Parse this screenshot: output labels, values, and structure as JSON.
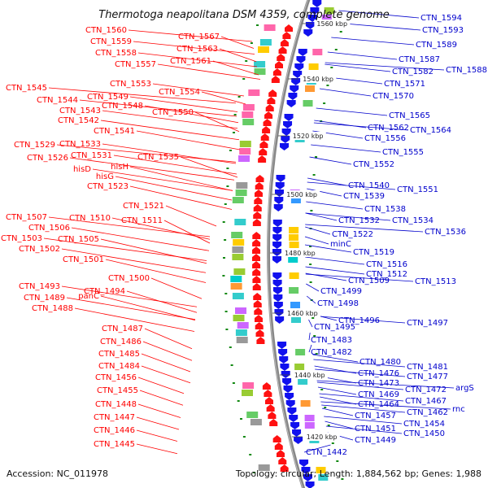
{
  "title": "Thermotoga neapolitana DSM 4359, complete genome",
  "accession": "Accession: NC_011978",
  "topology": "Topology: circular; Length: 1,884,562 bp; Genes: 1,988",
  "colors": {
    "left_labels": "#ff0000",
    "right_labels": "#0000cc",
    "backbone": "#888888",
    "tick": "#118811"
  },
  "kbp_markers": [
    "1560 kbp",
    "1540 kbp",
    "1520 kbp",
    "1500 kbp",
    "1480 kbp",
    "1460 kbp",
    "1440 kbp",
    "1420 kbp"
  ],
  "left_labels": [
    "CTN_1560",
    "CTN_1567",
    "CTN_1559",
    "CTN_1563",
    "CTN_1558",
    "CTN_1561",
    "CTN_1557",
    "CTN_1553",
    "CTN_1554",
    "CTN_1545",
    "CTN_1549",
    "CTN_1544",
    "CTN_1548",
    "CTN_1543",
    "CTN_1550",
    "CTN_1542",
    "CTN_1541",
    "CTN_1529",
    "CTN_1533",
    "CTN_1531",
    "CTN_1535",
    "CTN_1526",
    "hisD",
    "hisH",
    "hisG",
    "CTN_1523",
    "CTN_1521",
    "CTN_1507",
    "CTN_1510",
    "CTN_1511",
    "CTN_1506",
    "CTN_1503",
    "CTN_1505",
    "CTN_1502",
    "CTN_1501",
    "CTN_1500",
    "CTN_1493",
    "CTN_1494",
    "CTN_1489",
    "panC",
    "CTN_1488",
    "CTN_1487",
    "CTN_1486",
    "CTN_1485",
    "CTN_1484",
    "CTN_1456",
    "CTN_1455",
    "CTN_1448",
    "CTN_1447",
    "CTN_1446",
    "CTN_1445"
  ],
  "right_labels": [
    "CTN_1594",
    "CTN_1593",
    "CTN_1589",
    "CTN_1587",
    "CTN_1588",
    "CTN_1582",
    "CTN_1571",
    "CTN_1570",
    "CTN_1565",
    "CTN_1562",
    "CTN_1564",
    "CTN_1556",
    "CTN_1555",
    "CTN_1552",
    "CTN_1540",
    "CTN_1551",
    "CTN_1539",
    "CTN_1538",
    "CTN_1532",
    "CTN_1534",
    "CTN_1536",
    "CTN_1522",
    "minC",
    "CTN_1519",
    "CTN_1516",
    "CTN_1512",
    "CTN_1513",
    "CTN_1509",
    "CTN_1499",
    "CTN_1498",
    "CTN_1496",
    "CTN_1497",
    "CTN_1495",
    "CTN_1483",
    "CTN_1482",
    "CTN_1480",
    "CTN_1481",
    "CTN_1476",
    "CTN_1477",
    "CTN_1473",
    "argS",
    "CTN_1472",
    "CTN_1469",
    "CTN_1467",
    "CTN_1464",
    "rnc",
    "CTN_1462",
    "CTN_1457",
    "CTN_1454",
    "CTN_1451",
    "CTN_1450",
    "CTN_1449",
    "CTN_1442"
  ]
}
